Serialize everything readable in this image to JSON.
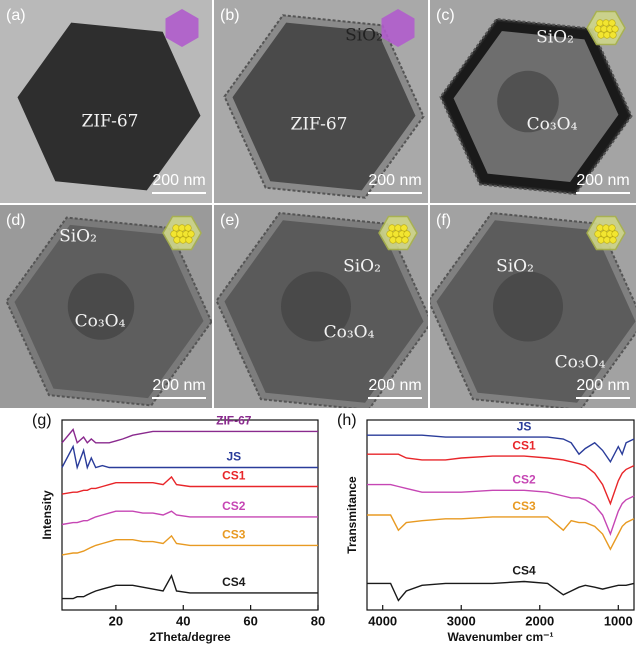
{
  "panels": [
    {
      "label": "(a)",
      "texts": [
        "ZIF-67"
      ],
      "scale_bar": "200 nm"
    },
    {
      "label": "(b)",
      "texts": [
        "SiO₂",
        "ZIF-67"
      ],
      "scale_bar": "200 nm"
    },
    {
      "label": "(c)",
      "texts": [
        "SiO₂",
        "Co₃O₄"
      ],
      "scale_bar": "200 nm"
    },
    {
      "label": "(d)",
      "texts": [
        "SiO₂",
        "Co₃O₄"
      ],
      "scale_bar": "200 nm"
    },
    {
      "label": "(e)",
      "texts": [
        "SiO₂",
        "Co₃O₄"
      ],
      "scale_bar": "200 nm"
    },
    {
      "label": "(f)",
      "texts": [
        "SiO₂",
        "Co₃O₄"
      ],
      "scale_bar": "200 nm"
    }
  ],
  "chart_data": [
    {
      "type": "line",
      "panel_label": "(g)",
      "x_label": "2Theta/degree",
      "y_label": "Intensity",
      "xlim": [
        4,
        80
      ],
      "ylim": [
        0,
        100
      ],
      "xticks": [
        20,
        40,
        60,
        80
      ],
      "x": [
        4,
        7.3,
        8.5,
        10.4,
        11.5,
        12.7,
        14,
        16,
        18,
        20,
        22,
        25,
        28,
        31,
        34,
        36.5,
        38,
        42,
        46,
        50,
        55,
        60,
        65,
        70,
        75,
        80
      ],
      "series": [
        {
          "name": "ZIF-67",
          "color": "#8a2a8e",
          "values": [
            88,
            95,
            88,
            91,
            88,
            90,
            88,
            88,
            88,
            89,
            90,
            92,
            93,
            94,
            94,
            94,
            94,
            94,
            94,
            94,
            94,
            94,
            94,
            94,
            94,
            94
          ]
        },
        {
          "name": "JS",
          "color": "#2a3c9a",
          "values": [
            75,
            86,
            75,
            84,
            75,
            80,
            75,
            76,
            75,
            75,
            75,
            75,
            75,
            75,
            75,
            75,
            75,
            75,
            75,
            75,
            75,
            75,
            75,
            75,
            75,
            75
          ]
        },
        {
          "name": "CS1",
          "color": "#e8262a",
          "values": [
            61,
            62,
            62,
            63,
            63,
            64,
            64,
            65,
            66,
            67,
            67,
            67,
            67,
            67,
            66,
            70,
            66,
            65,
            65,
            65,
            65,
            65,
            65,
            65,
            65,
            65
          ]
        },
        {
          "name": "CS2",
          "color": "#c646b4",
          "values": [
            45,
            46,
            46,
            47,
            47,
            48,
            49,
            50,
            51,
            52,
            52,
            52,
            51,
            51,
            50,
            52,
            50,
            49,
            49,
            49,
            49,
            49,
            49,
            49,
            49,
            49
          ]
        },
        {
          "name": "CS3",
          "color": "#e89a22",
          "values": [
            29,
            30,
            30,
            31,
            32,
            33,
            34,
            35,
            36,
            37,
            37,
            37,
            36,
            36,
            35,
            39,
            35,
            34,
            34,
            34,
            34,
            34,
            34,
            34,
            34,
            34
          ]
        },
        {
          "name": "CS4",
          "color": "#1a1a1a",
          "values": [
            6,
            6,
            7,
            7,
            8,
            9,
            10,
            11,
            12,
            13,
            13,
            13,
            12,
            11,
            10,
            18,
            10,
            9,
            9,
            9,
            9,
            9,
            9,
            9,
            9,
            9
          ]
        }
      ]
    },
    {
      "type": "line",
      "panel_label": "(h)",
      "x_label": "Wavenumber cm⁻¹",
      "y_label": "Transmitance",
      "xlim": [
        4200,
        800
      ],
      "ylim": [
        0,
        100
      ],
      "xticks": [
        4000,
        3000,
        2000,
        1000
      ],
      "x": [
        4200,
        3900,
        3800,
        3700,
        3500,
        3200,
        3000,
        2600,
        2200,
        1900,
        1700,
        1600,
        1500,
        1420,
        1300,
        1200,
        1100,
        1000,
        950,
        900,
        800
      ],
      "series": [
        {
          "name": "JS",
          "color": "#2a3c9a",
          "values": [
            92,
            92,
            92,
            92,
            92,
            91,
            91,
            91,
            91,
            91,
            90,
            88,
            82,
            85,
            88,
            84,
            78,
            86,
            82,
            88,
            90
          ]
        },
        {
          "name": "CS1",
          "color": "#e8262a",
          "values": [
            82,
            82,
            82,
            80,
            79,
            79,
            80,
            81,
            81,
            80,
            79,
            78,
            77,
            76,
            72,
            66,
            56,
            68,
            72,
            74,
            76
          ]
        },
        {
          "name": "CS2",
          "color": "#c646b4",
          "values": [
            66,
            66,
            65,
            64,
            62,
            62,
            62,
            63,
            63,
            62,
            60,
            59,
            59,
            58,
            55,
            50,
            40,
            52,
            56,
            58,
            60
          ]
        },
        {
          "name": "CS3",
          "color": "#e89a22",
          "values": [
            50,
            50,
            42,
            46,
            47,
            48,
            48,
            49,
            49,
            49,
            42,
            47,
            46,
            46,
            44,
            40,
            32,
            40,
            44,
            46,
            48
          ]
        },
        {
          "name": "CS4",
          "color": "#1a1a1a",
          "values": [
            14,
            14,
            5,
            10,
            13,
            14,
            14,
            14,
            15,
            14,
            8,
            10,
            12,
            13,
            12,
            11,
            12,
            13,
            13,
            13,
            14
          ]
        }
      ]
    }
  ]
}
